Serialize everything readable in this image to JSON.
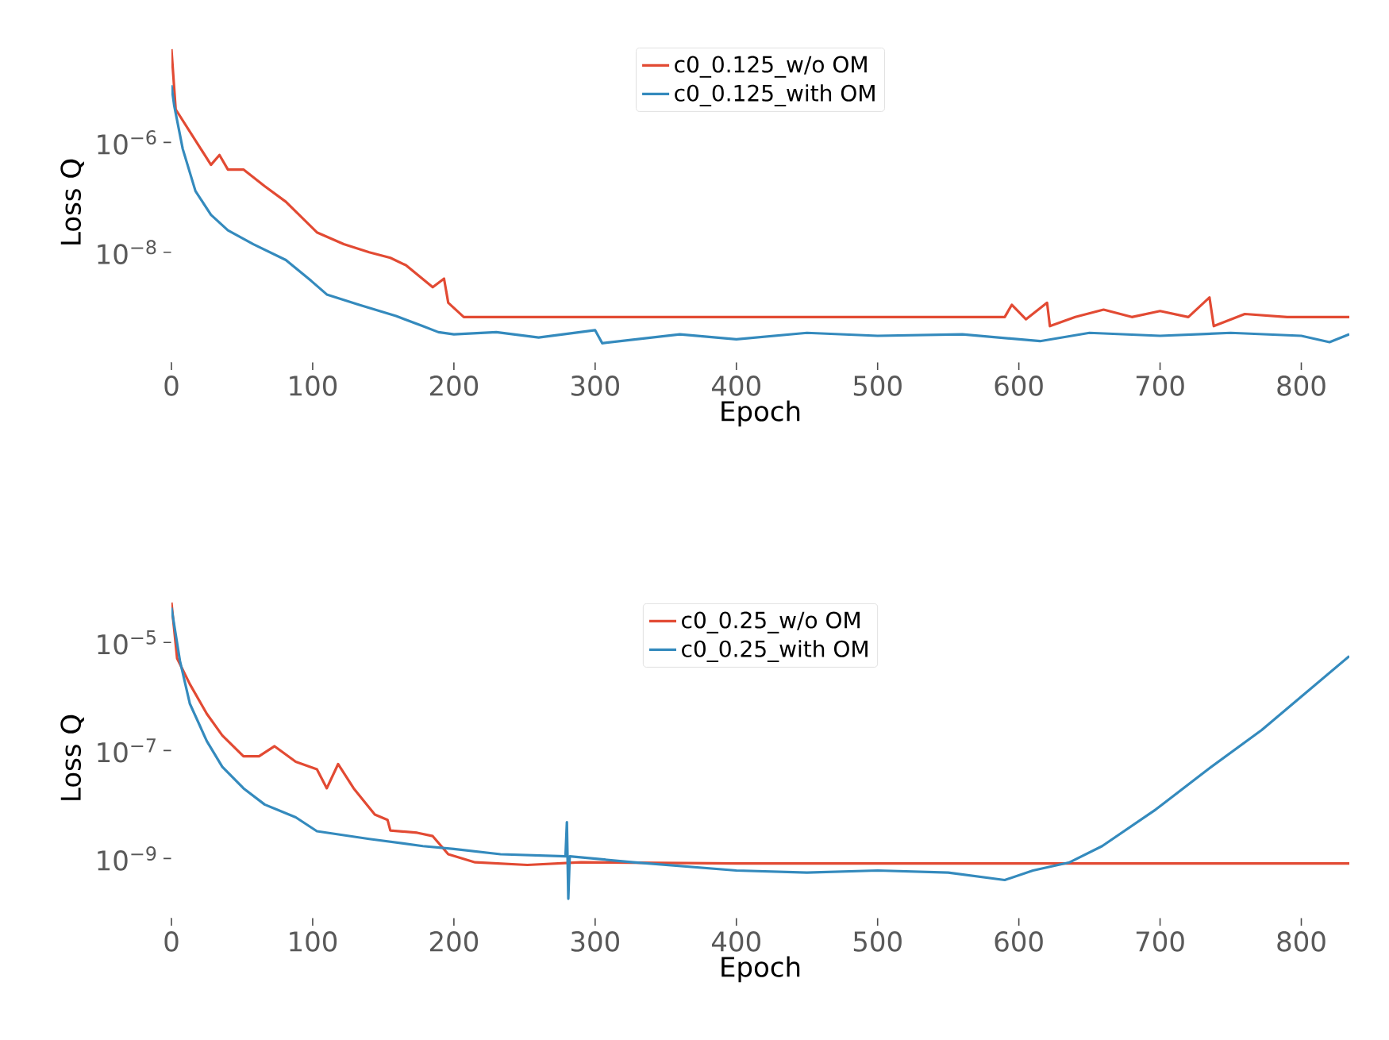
{
  "chart_data": [
    {
      "type": "line",
      "xlabel": "Epoch",
      "ylabel": "Loss Q",
      "log": "y",
      "legend": "top",
      "marker": "none",
      "line_style": "solid",
      "grid": false,
      "xlim": [
        0,
        834
      ],
      "ylim": [
        1e-10,
        6.5e-05
      ],
      "xticks": [
        0,
        100,
        200,
        300,
        400,
        500,
        600,
        700,
        800
      ],
      "yticks": [
        {
          "value": 1e-06,
          "label": "10$^{−6}$"
        },
        {
          "value": 1e-08,
          "label": "10$^{−8}$"
        }
      ],
      "series": [
        {
          "name": "c0_0.125_w/o OM",
          "color": "#e24a33",
          "x": [
            0,
            3,
            28,
            34,
            40,
            51,
            66,
            81,
            103,
            122,
            140,
            155,
            166,
            185,
            193,
            196,
            207,
            300,
            400,
            500,
            590,
            595,
            605,
            620,
            622,
            640,
            660,
            680,
            700,
            720,
            735,
            738,
            760,
            790,
            834
          ],
          "values": [
            5e-05,
            4e-06,
            3.9e-07,
            5.9e-07,
            3.2e-07,
            3.2e-07,
            1.6e-07,
            8.3e-08,
            2.3e-08,
            1.4e-08,
            1e-08,
            7.9e-09,
            5.8e-09,
            2.3e-09,
            3.3e-09,
            1.2e-09,
            6.6e-10,
            6.6e-10,
            6.6e-10,
            6.6e-10,
            6.6e-10,
            1.1e-09,
            6e-10,
            1.2e-09,
            4.5e-10,
            6.6e-10,
            9e-10,
            6.6e-10,
            8.5e-10,
            6.6e-10,
            1.5e-09,
            4.5e-10,
            7.5e-10,
            6.6e-10,
            6.6e-10
          ]
        },
        {
          "name": "c0_0.125_with OM",
          "color": "#348abd",
          "x": [
            0,
            2,
            8,
            17,
            28,
            40,
            58,
            81,
            99,
            110,
            133,
            159,
            178,
            189,
            200,
            230,
            260,
            300,
            305,
            360,
            400,
            450,
            500,
            560,
            615,
            650,
            700,
            750,
            800,
            820,
            834
          ],
          "values": [
            1.1e-05,
            4.6e-06,
            7.6e-07,
            1.3e-07,
            4.8e-08,
            2.5e-08,
            1.4e-08,
            7.2e-09,
            3e-09,
            1.7e-09,
            1.1e-09,
            6.9e-10,
            4.5e-10,
            3.5e-10,
            3.2e-10,
            3.5e-10,
            2.8e-10,
            3.8e-10,
            2.2e-10,
            3.2e-10,
            2.6e-10,
            3.4e-10,
            3e-10,
            3.2e-10,
            2.4e-10,
            3.4e-10,
            3e-10,
            3.4e-10,
            3e-10,
            2.3e-10,
            3.2e-10
          ]
        }
      ]
    },
    {
      "type": "line",
      "xlabel": "Epoch",
      "ylabel": "Loss Q",
      "log": "y",
      "legend": "top",
      "marker": "none",
      "line_style": "solid",
      "grid": false,
      "xlim": [
        0,
        834
      ],
      "ylim": [
        8e-11,
        6.5e-05
      ],
      "xticks": [
        0,
        100,
        200,
        300,
        400,
        500,
        600,
        700,
        800
      ],
      "yticks": [
        {
          "value": 1e-05,
          "label": "10$^{−5}$"
        },
        {
          "value": 1e-07,
          "label": "10$^{−7}$"
        },
        {
          "value": 1e-09,
          "label": "10$^{−9}$"
        }
      ],
      "series": [
        {
          "name": "c0_0.25_w/o OM",
          "color": "#e24a33",
          "x": [
            0,
            4,
            13,
            25,
            36,
            51,
            62,
            73,
            88,
            103,
            110,
            118,
            129,
            144,
            153,
            155,
            174,
            185,
            196,
            215,
            252,
            290,
            400,
            500,
            600,
            700,
            834
          ],
          "values": [
            5.5e-05,
            5.1e-06,
            1.7e-06,
            4.8e-07,
            1.9e-07,
            7.8e-08,
            7.8e-08,
            1.2e-07,
            6.2e-08,
            4.5e-08,
            2e-08,
            5.6e-08,
            2e-08,
            6.5e-09,
            5.2e-09,
            3.3e-09,
            3e-09,
            2.6e-09,
            1.2e-09,
            8.5e-10,
            7.6e-10,
            8.5e-10,
            8.1e-10,
            8.1e-10,
            8.1e-10,
            8.1e-10,
            8.1e-10
          ]
        },
        {
          "name": "c0_0.25_with OM",
          "color": "#348abd",
          "x": [
            0,
            6,
            13,
            25,
            36,
            51,
            66,
            88,
            103,
            140,
            178,
            200,
            233,
            279,
            280,
            281,
            282,
            327,
            400,
            450,
            500,
            550,
            590,
            610,
            636,
            659,
            697,
            734,
            772,
            834
          ],
          "values": [
            4.4e-05,
            4.6e-06,
            7.4e-07,
            1.5e-07,
            5e-08,
            2e-08,
            1e-08,
            5.8e-09,
            3.2e-09,
            2.3e-09,
            1.7e-09,
            1.5e-09,
            1.2e-09,
            1.1e-09,
            4.7e-09,
            1.8e-10,
            1.1e-09,
            8.5e-10,
            6e-10,
            5.5e-10,
            6e-10,
            5.5e-10,
            4e-10,
            6e-10,
            8.5e-10,
            1.7e-09,
            8.1e-09,
            4.5e-08,
            2.4e-07,
            5.6e-06
          ]
        }
      ]
    }
  ]
}
